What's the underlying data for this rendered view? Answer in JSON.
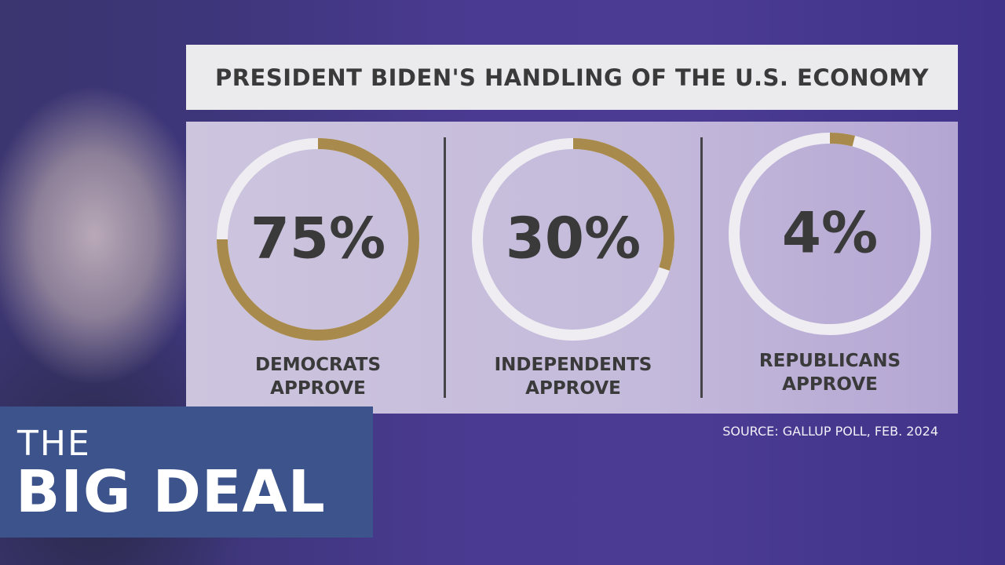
{
  "chart_data": {
    "type": "donut",
    "title": "PRESIDENT BIDEN'S HANDLING OF THE U.S. ECONOMY",
    "categories": [
      "DEMOCRATS APPROVE",
      "INDEPENDENTS APPROVE",
      "REPUBLICANS APPROVE"
    ],
    "values": [
      75,
      30,
      4
    ],
    "value_labels": [
      "75%",
      "30%",
      "4%"
    ],
    "color": "#a88b4c",
    "source": "SOURCE: GALLUP POLL, FEB. 2024"
  },
  "branding": {
    "line1": "THE",
    "line2": "BIG DEAL"
  }
}
